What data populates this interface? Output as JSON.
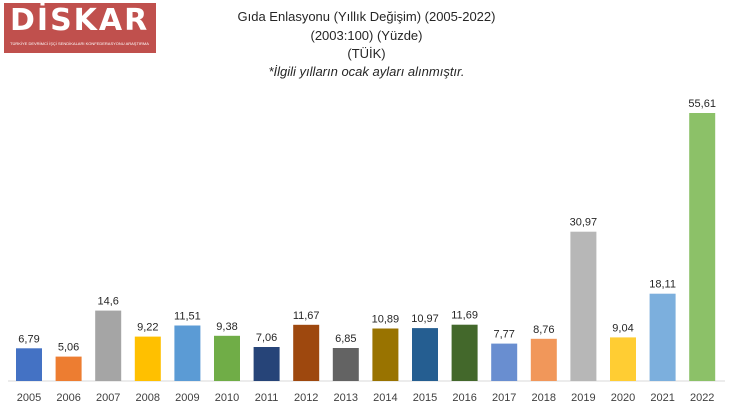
{
  "logo": {
    "text": "DİSKAR",
    "subtitle": "TÜRKİYE DEVRİMCİ İŞÇİ SENDİKALARI KONFEDERASYONU ARAŞTIRMA MERKEZİ"
  },
  "chart_data": {
    "type": "bar",
    "title": "Gıda Enlasyonu (Yıllık Değişim) (2005-2022)",
    "subtitle_lines": [
      "(2003:100) (Yüzde)",
      "(TÜİK)"
    ],
    "note": "*İlgili yılların ocak ayları alınmıştır.",
    "xlabel": "",
    "ylabel": "",
    "grid": false,
    "ylim": [
      0,
      60
    ],
    "categories": [
      "2005",
      "2006",
      "2007",
      "2008",
      "2009",
      "2010",
      "2011",
      "2012",
      "2013",
      "2014",
      "2015",
      "2016",
      "2017",
      "2018",
      "2019",
      "2020",
      "2021",
      "2022"
    ],
    "values": [
      6.79,
      5.06,
      14.6,
      9.22,
      11.51,
      9.38,
      7.06,
      11.67,
      6.85,
      10.89,
      10.97,
      11.69,
      7.77,
      8.76,
      30.97,
      9.04,
      18.11,
      55.61
    ],
    "value_labels": [
      "6,79",
      "5,06",
      "14,6",
      "9,22",
      "11,51",
      "9,38",
      "7,06",
      "11,67",
      "6,85",
      "10,89",
      "10,97",
      "11,69",
      "7,77",
      "8,76",
      "30,97",
      "9,04",
      "18,11",
      "55,61"
    ],
    "colors": [
      "#4472c4",
      "#ed7d31",
      "#a5a5a5",
      "#ffc000",
      "#5b9bd5",
      "#70ad47",
      "#264478",
      "#9e480e",
      "#636363",
      "#997300",
      "#255e91",
      "#43682b",
      "#698ed0",
      "#f1975a",
      "#b7b7b7",
      "#ffcd33",
      "#7cafdd",
      "#8cc168"
    ]
  }
}
